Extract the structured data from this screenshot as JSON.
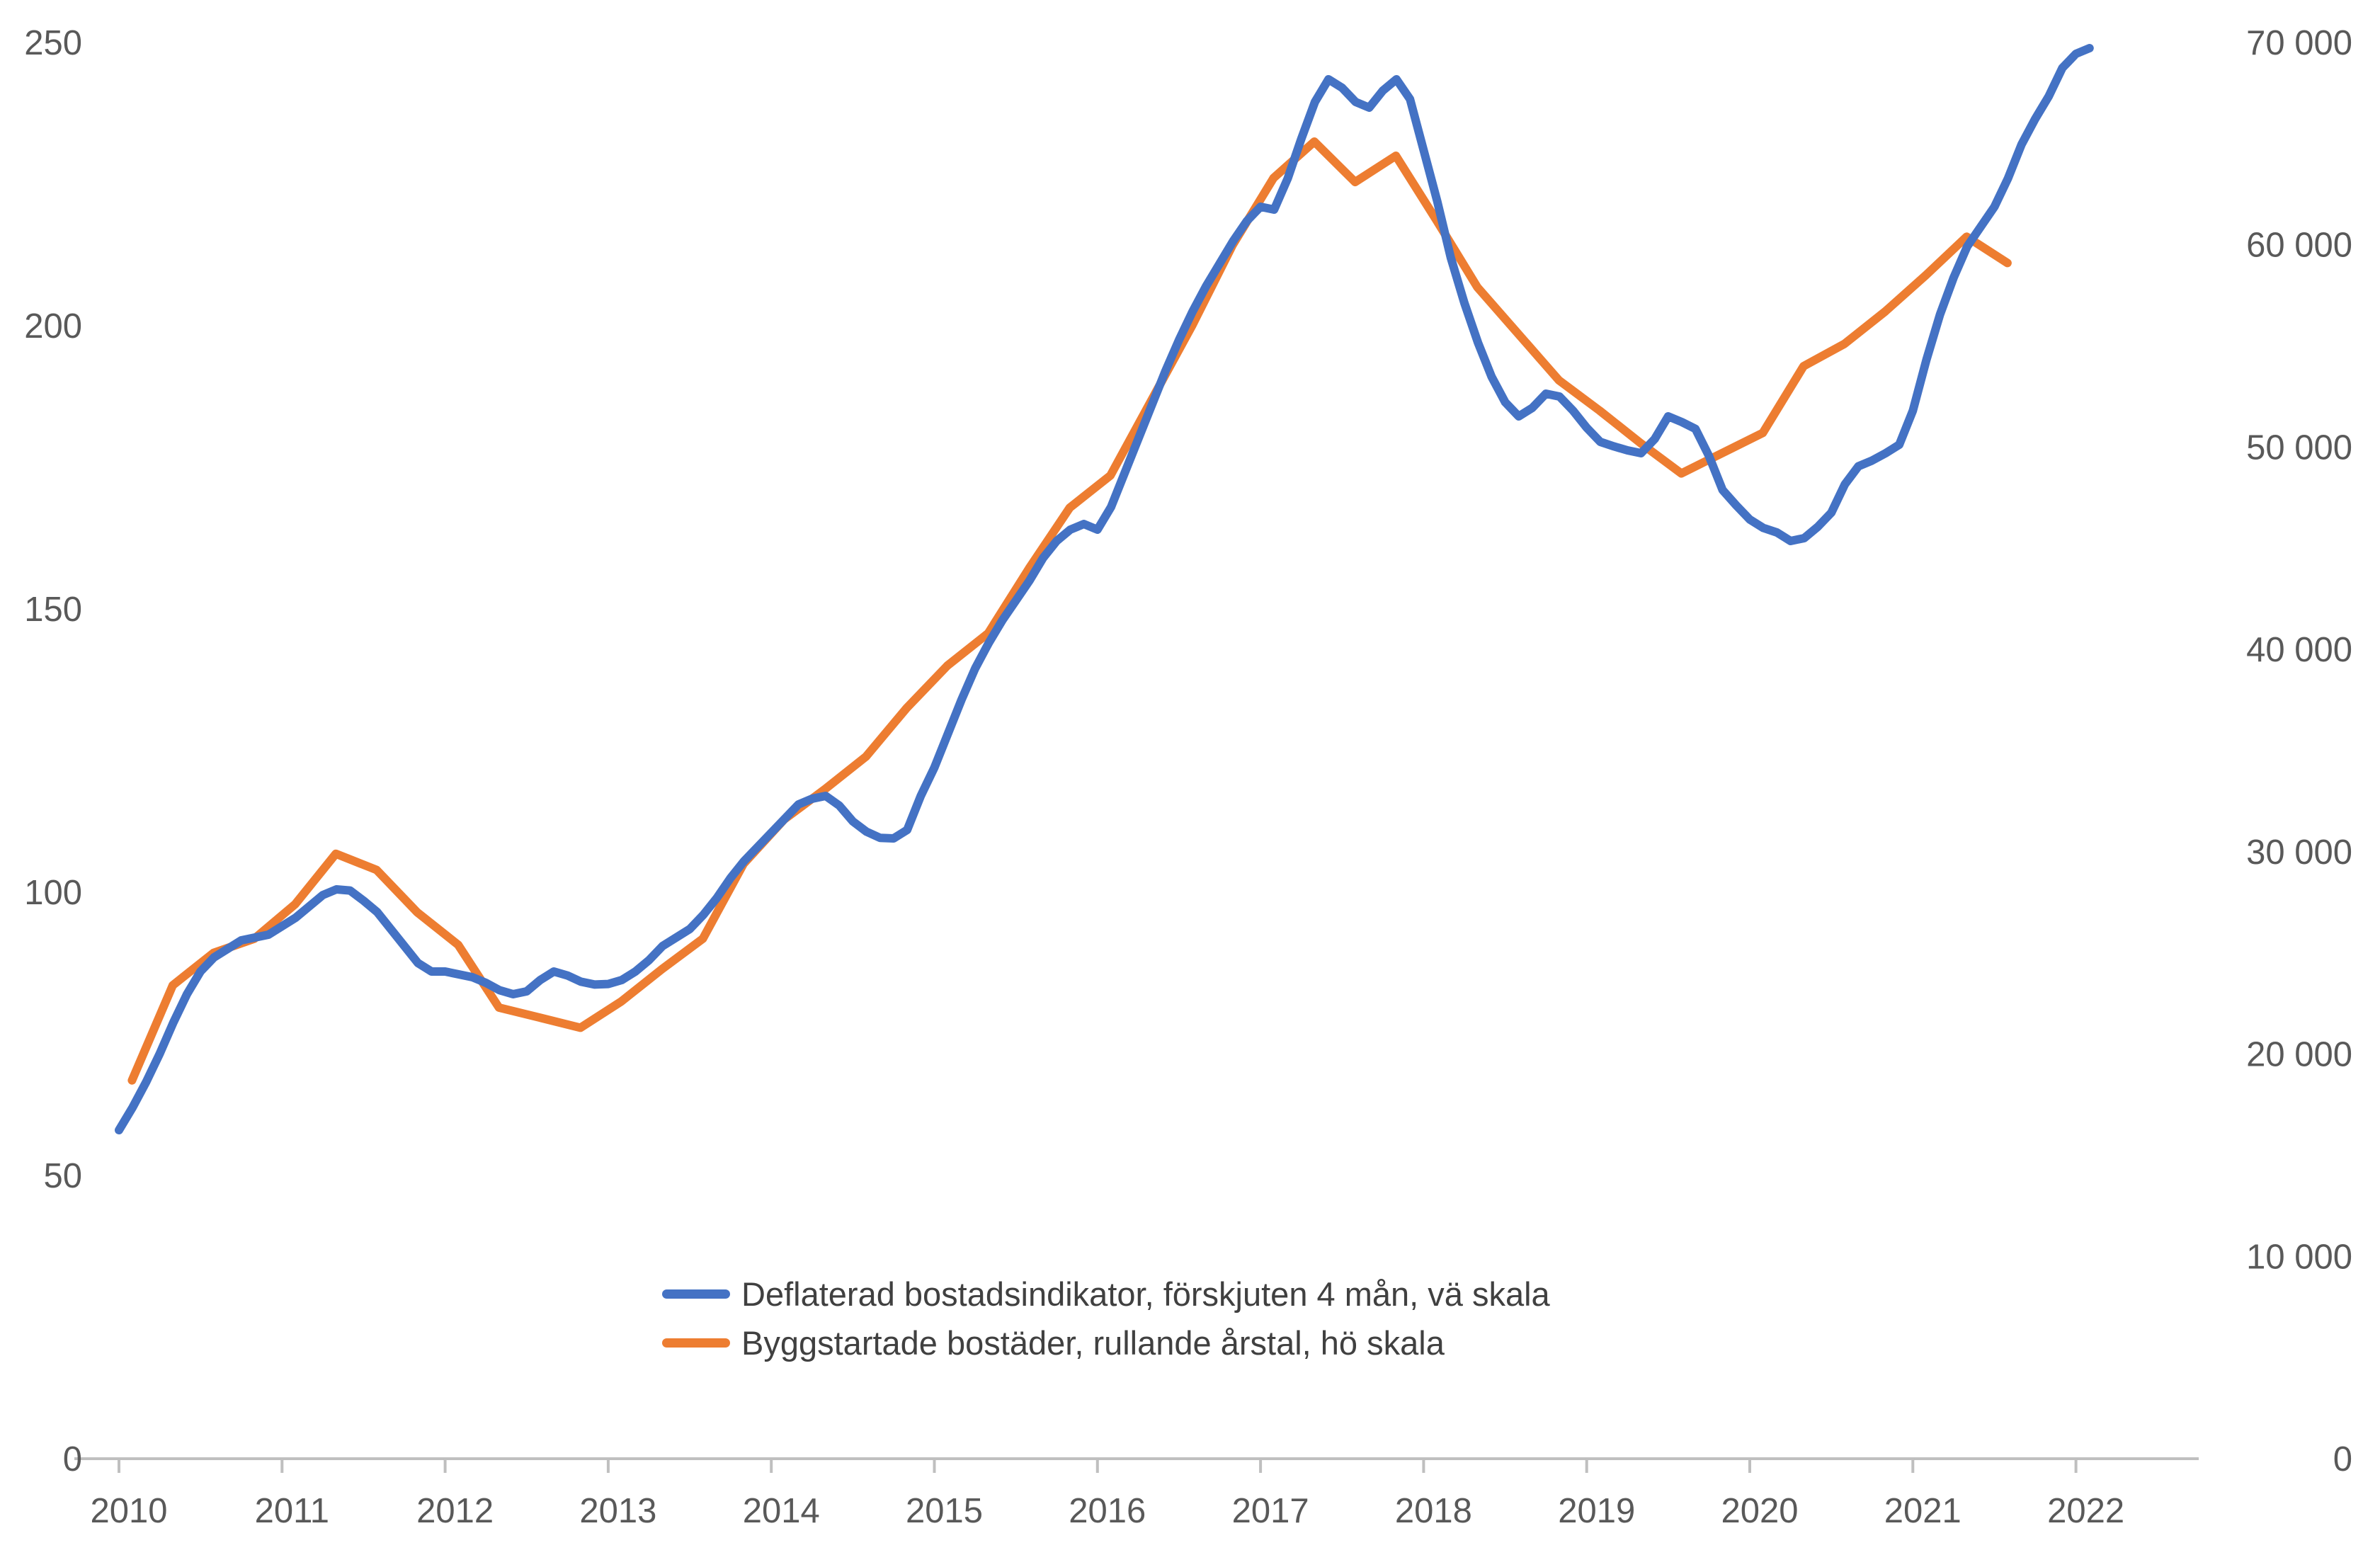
{
  "chart_data": {
    "type": "line",
    "title": "",
    "grid": false,
    "legend_position": "bottom-center",
    "x_axis": {
      "labels": [
        "2010",
        "2011",
        "2012",
        "2013",
        "2014",
        "2015",
        "2016",
        "2017",
        "2018",
        "2019",
        "2020",
        "2021",
        "2022"
      ]
    },
    "left_axis": {
      "range": [
        0,
        250
      ],
      "ticks": [
        "0",
        "50",
        "100",
        "150",
        "200",
        "250"
      ]
    },
    "right_axis": {
      "range": [
        0,
        70000
      ],
      "ticks": [
        "0",
        "10 000",
        "20 000",
        "30 000",
        "40 000",
        "50 000",
        "60 000",
        "70 000"
      ]
    },
    "series": [
      {
        "name": "Deflaterad bostadsindikator, förskjuten 4 mån, vä skala",
        "axis": "left",
        "color": "#4472C4",
        "frequency": "monthly",
        "start": "2010-01",
        "end": "2022-02",
        "values": [
          58,
          62,
          66.5,
          71.5,
          77,
          82,
          86,
          88.5,
          90,
          91.5,
          92,
          92.5,
          94,
          95.5,
          97.5,
          99.5,
          100.5,
          100.3,
          98.5,
          96.5,
          93.5,
          90.5,
          87.5,
          86,
          86,
          85.5,
          85,
          84,
          82.7,
          82,
          82.5,
          84.5,
          86,
          85.3,
          84.2,
          83.7,
          83.8,
          84.5,
          86,
          88,
          90.5,
          92,
          93.5,
          96,
          99,
          102.5,
          105.5,
          108,
          110.5,
          113,
          115.5,
          116.5,
          117,
          115.3,
          112.5,
          110.7,
          109.6,
          109.5,
          111,
          117,
          122,
          128,
          134,
          139.5,
          144,
          148,
          151.5,
          155,
          159,
          162,
          164,
          165,
          164,
          168,
          174,
          180,
          186,
          192,
          197.5,
          202.5,
          207,
          211,
          215,
          218.5,
          221,
          220.5,
          226,
          233,
          239.5,
          243.5,
          242,
          239.5,
          238.5,
          241.5,
          243.5,
          240,
          231,
          222,
          212,
          204,
          197,
          191,
          186.5,
          184,
          185.5,
          188,
          187.5,
          185,
          182,
          179.5,
          178.7,
          178,
          177.5,
          180,
          184,
          183,
          181.8,
          177,
          171,
          168.3,
          165.8,
          164.3,
          163.5,
          162,
          162.5,
          164.5,
          167,
          172,
          175.2,
          176.2,
          177.5,
          179,
          185,
          194,
          202,
          208.5,
          214,
          217.5,
          221,
          226,
          232,
          236.5,
          240.5,
          245.5,
          248,
          249
        ]
      },
      {
        "name": "Byggstartade bostäder, rullande årstal, hö skala",
        "axis": "right",
        "color": "#ED7D31",
        "frequency": "quarterly",
        "start": "2010-Q1",
        "end": "2021-Q3",
        "values": [
          18700,
          23400,
          25000,
          25700,
          27400,
          29900,
          29100,
          27000,
          25400,
          22300,
          21800,
          21300,
          22600,
          24200,
          25700,
          29400,
          31600,
          33100,
          34700,
          37100,
          39200,
          40800,
          44000,
          47000,
          48600,
          52300,
          56000,
          60000,
          63300,
          65100,
          63100,
          64400,
          61200,
          57900,
          55600,
          53300,
          51800,
          50200,
          48700,
          49700,
          50700,
          54000,
          55100,
          56700,
          58500,
          60400,
          59100
        ]
      }
    ]
  },
  "legend": {
    "items": [
      {
        "label": "Deflaterad bostadsindikator, förskjuten 4 mån, vä skala",
        "color": "#4472C4"
      },
      {
        "label": "Byggstartade bostäder, rullande årstal, hö skala",
        "color": "#ED7D31"
      }
    ]
  },
  "colors": {
    "indicator_line": "#4472C4",
    "housing_starts_line": "#ED7D31",
    "axis_line": "#BFBFBF",
    "tick_label": "#595959",
    "legend_text": "#404040",
    "background": "#FFFFFF"
  }
}
